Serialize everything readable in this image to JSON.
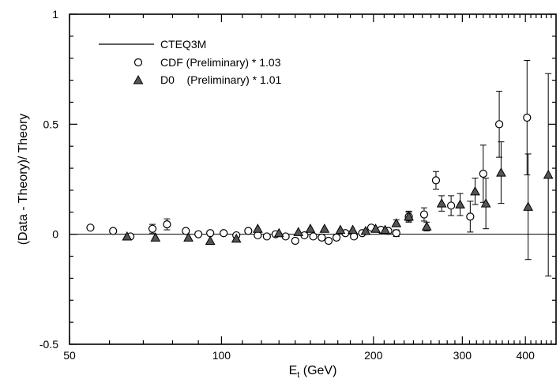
{
  "chart_data": {
    "type": "scatter",
    "title": "",
    "xlabel_main": "E",
    "xlabel_sub": "t",
    "xlabel_rest": " (GeV)",
    "ylabel": "(Data - Theory)/ Theory",
    "xscale": "log",
    "xlim": [
      50,
      460
    ],
    "ylim": [
      -0.5,
      1
    ],
    "xticks": [
      50,
      100,
      200,
      300,
      400
    ],
    "xtick_labels": [
      "50",
      "100",
      "200",
      "300",
      "400"
    ],
    "yticks": [
      -0.5,
      0,
      0.5,
      1
    ],
    "ytick_labels": [
      "-0.5",
      "0",
      "0.5",
      "1"
    ],
    "grid": false,
    "legend_position": "top-left",
    "reference_line": {
      "name": "CTEQ3M",
      "y": 0
    },
    "series": [
      {
        "name": "CDF (Preliminary) * 1.03",
        "marker": "open-circle",
        "points": [
          {
            "x": 55,
            "y": 0.03,
            "err": 0.01
          },
          {
            "x": 61,
            "y": 0.015,
            "err": 0.01
          },
          {
            "x": 66,
            "y": -0.01,
            "err": 0.01
          },
          {
            "x": 73,
            "y": 0.025,
            "err": 0.02
          },
          {
            "x": 78,
            "y": 0.045,
            "err": 0.025
          },
          {
            "x": 85,
            "y": 0.015,
            "err": 0.01
          },
          {
            "x": 90,
            "y": 0.0,
            "err": 0.01
          },
          {
            "x": 95,
            "y": 0.005,
            "err": 0.01
          },
          {
            "x": 101,
            "y": 0.005,
            "err": 0.01
          },
          {
            "x": 107,
            "y": -0.005,
            "err": 0.01
          },
          {
            "x": 113,
            "y": 0.015,
            "err": 0.01
          },
          {
            "x": 118,
            "y": -0.005,
            "err": 0.01
          },
          {
            "x": 123,
            "y": -0.01,
            "err": 0.01
          },
          {
            "x": 128,
            "y": 0.0,
            "err": 0.01
          },
          {
            "x": 134,
            "y": -0.01,
            "err": 0.01
          },
          {
            "x": 140,
            "y": -0.03,
            "err": 0.01
          },
          {
            "x": 146,
            "y": -0.005,
            "err": 0.01
          },
          {
            "x": 152,
            "y": -0.01,
            "err": 0.01
          },
          {
            "x": 158,
            "y": -0.015,
            "err": 0.01
          },
          {
            "x": 163,
            "y": -0.03,
            "err": 0.01
          },
          {
            "x": 169,
            "y": -0.015,
            "err": 0.01
          },
          {
            "x": 176,
            "y": 0.005,
            "err": 0.01
          },
          {
            "x": 183,
            "y": -0.01,
            "err": 0.01
          },
          {
            "x": 190,
            "y": 0.005,
            "err": 0.01
          },
          {
            "x": 198,
            "y": 0.03,
            "err": 0.01
          },
          {
            "x": 207,
            "y": 0.02,
            "err": 0.01
          },
          {
            "x": 214,
            "y": 0.015,
            "err": 0.01
          },
          {
            "x": 222,
            "y": 0.005,
            "err": 0.015
          },
          {
            "x": 235,
            "y": 0.08,
            "err": 0.025
          },
          {
            "x": 252,
            "y": 0.09,
            "err": 0.03
          },
          {
            "x": 266,
            "y": 0.245,
            "err": 0.04
          },
          {
            "x": 285,
            "y": 0.13,
            "err": 0.045
          },
          {
            "x": 311,
            "y": 0.08,
            "err": 0.07
          },
          {
            "x": 330,
            "y": 0.275,
            "err": 0.13
          },
          {
            "x": 355,
            "y": 0.5,
            "err": 0.15
          },
          {
            "x": 403,
            "y": 0.53,
            "err": 0.26
          }
        ]
      },
      {
        "name": "D0    (Preliminary) * 1.01",
        "marker": "filled-triangle",
        "points": [
          {
            "x": 65,
            "y": -0.01,
            "err": 0.01
          },
          {
            "x": 74,
            "y": -0.015,
            "err": 0.01
          },
          {
            "x": 86,
            "y": -0.015,
            "err": 0.01
          },
          {
            "x": 95,
            "y": -0.03,
            "err": 0.01
          },
          {
            "x": 107,
            "y": -0.02,
            "err": 0.01
          },
          {
            "x": 118,
            "y": 0.025,
            "err": 0.01
          },
          {
            "x": 130,
            "y": 0.005,
            "err": 0.01
          },
          {
            "x": 142,
            "y": 0.01,
            "err": 0.01
          },
          {
            "x": 150,
            "y": 0.025,
            "err": 0.01
          },
          {
            "x": 160,
            "y": 0.025,
            "err": 0.01
          },
          {
            "x": 172,
            "y": 0.02,
            "err": 0.01
          },
          {
            "x": 182,
            "y": 0.02,
            "err": 0.01
          },
          {
            "x": 193,
            "y": 0.015,
            "err": 0.01
          },
          {
            "x": 202,
            "y": 0.025,
            "err": 0.01
          },
          {
            "x": 211,
            "y": 0.02,
            "err": 0.01
          },
          {
            "x": 222,
            "y": 0.05,
            "err": 0.015
          },
          {
            "x": 235,
            "y": 0.08,
            "err": 0.02
          },
          {
            "x": 255,
            "y": 0.035,
            "err": 0.02
          },
          {
            "x": 273,
            "y": 0.14,
            "err": 0.035
          },
          {
            "x": 297,
            "y": 0.135,
            "err": 0.05
          },
          {
            "x": 318,
            "y": 0.195,
            "err": 0.06
          },
          {
            "x": 334,
            "y": 0.14,
            "err": 0.115
          },
          {
            "x": 358,
            "y": 0.28,
            "err": 0.14
          },
          {
            "x": 405,
            "y": 0.125,
            "err": 0.24
          },
          {
            "x": 444,
            "y": 0.27,
            "err": 0.46
          }
        ]
      }
    ]
  }
}
